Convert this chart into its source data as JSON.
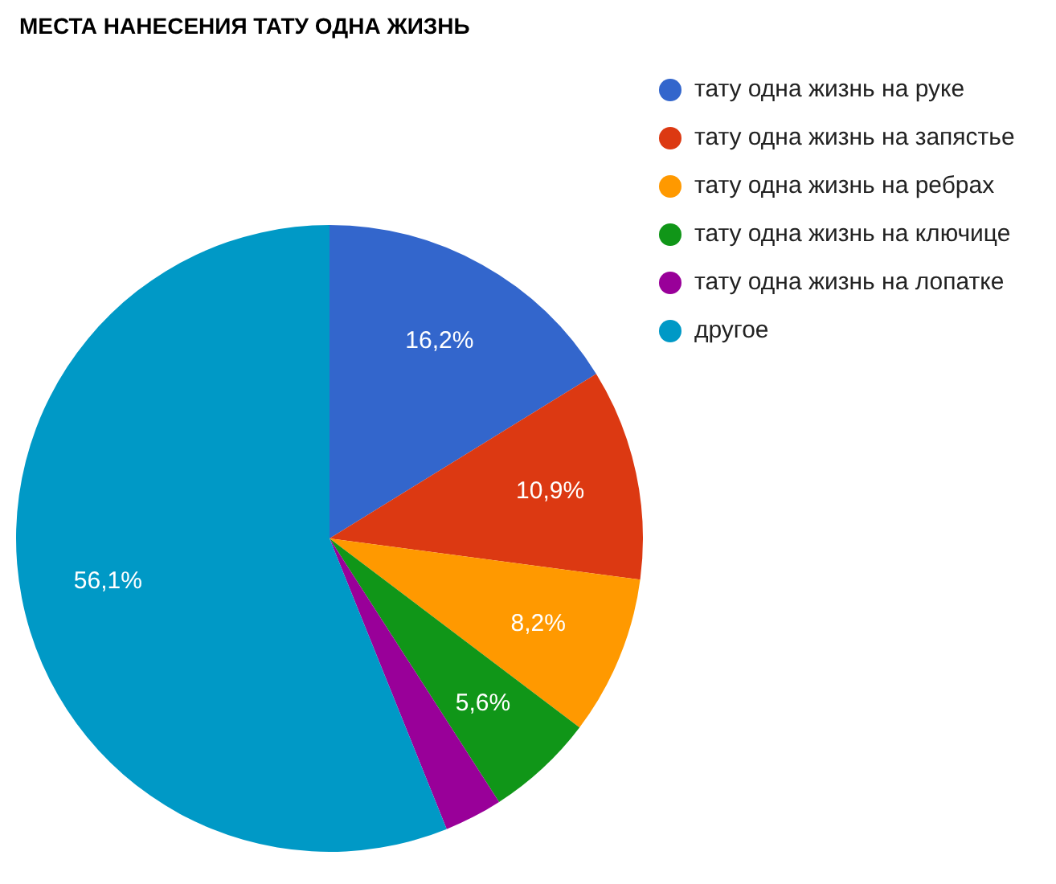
{
  "chart_data": {
    "type": "pie",
    "title": "МЕСТА НАНЕСЕНИЯ ТАТУ ОДНА ЖИЗНЬ",
    "categories": [
      "тату одна жизнь на руке",
      "тату одна жизнь на запястье",
      "тату одна жизнь на ребрах",
      "тату одна жизнь на ключице",
      "тату одна жизнь на лопатке",
      "другое"
    ],
    "values": [
      16.2,
      10.9,
      8.2,
      5.6,
      3.0,
      56.1
    ],
    "colors": [
      "#3366cc",
      "#dc3912",
      "#ff9900",
      "#109618",
      "#990099",
      "#0099c6"
    ],
    "value_labels": [
      "16,2%",
      "10,9%",
      "8,2%",
      "5,6%",
      null,
      "56,1%"
    ],
    "legend": "right"
  }
}
